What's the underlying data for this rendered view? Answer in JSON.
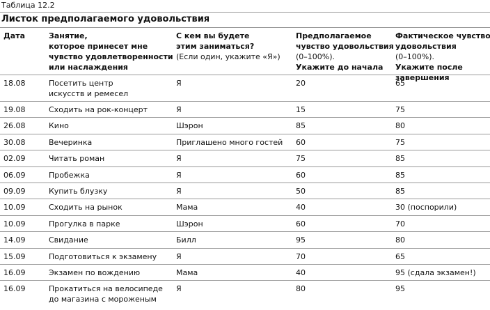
{
  "caption": "Таблица 12.2",
  "title": "Листок предполагаемого удовольствия",
  "table": {
    "header": [
      [
        {
          "text": "Дата",
          "bold": true
        }
      ],
      [
        {
          "text": "Занятие,",
          "bold": true
        },
        {
          "text": "которое принесет мне",
          "bold": true
        },
        {
          "text": "чувство удовлетворенности",
          "bold": true
        },
        {
          "text": "или наслаждения",
          "bold": true
        }
      ],
      [
        {
          "text": "С кем вы будете",
          "bold": true
        },
        {
          "text": "этим заниматься?",
          "bold": true
        },
        {
          "text": "(Если один, укажите «Я»)",
          "bold": false
        }
      ],
      [
        {
          "text": "Предполагаемое",
          "bold": true
        },
        {
          "text": "чувство удовольствия",
          "bold": true
        },
        {
          "text": "(0–100%).",
          "bold": false
        },
        {
          "text": "Укажите до начала",
          "bold": true
        }
      ],
      [
        {
          "text": "Фактическое чувство",
          "bold": true
        },
        {
          "text": "удовольствия",
          "bold": true
        },
        {
          "text": "(0–100%).",
          "bold": false
        },
        {
          "text": "Укажите после",
          "bold": true
        },
        {
          "text": "завершения",
          "bold": true
        }
      ]
    ],
    "rows": [
      [
        [
          "18.08"
        ],
        [
          "Посетить центр",
          "искусств и ремесел"
        ],
        [
          "Я"
        ],
        [
          20
        ],
        [
          65
        ]
      ],
      [
        [
          "19.08"
        ],
        [
          "Сходить на рок-концерт"
        ],
        [
          "Я"
        ],
        [
          15
        ],
        [
          75
        ]
      ],
      [
        [
          "26.08"
        ],
        [
          "Кино"
        ],
        [
          "Шэрон"
        ],
        [
          85
        ],
        [
          80
        ]
      ],
      [
        [
          "30.08"
        ],
        [
          "Вечеринка"
        ],
        [
          "Приглашено много гостей"
        ],
        [
          60
        ],
        [
          75
        ]
      ],
      [
        [
          "02.09"
        ],
        [
          "Читать роман"
        ],
        [
          "Я"
        ],
        [
          75
        ],
        [
          85
        ]
      ],
      [
        [
          "06.09"
        ],
        [
          "Пробежка"
        ],
        [
          "Я"
        ],
        [
          60
        ],
        [
          85
        ]
      ],
      [
        [
          "09.09"
        ],
        [
          "Купить блузку"
        ],
        [
          "Я"
        ],
        [
          50
        ],
        [
          85
        ]
      ],
      [
        [
          "10.09"
        ],
        [
          "Сходить на рынок"
        ],
        [
          "Мама"
        ],
        [
          40
        ],
        [
          "30 (поспорили)"
        ]
      ],
      [
        [
          "10.09"
        ],
        [
          "Прогулка в парке"
        ],
        [
          "Шэрон"
        ],
        [
          60
        ],
        [
          70
        ]
      ],
      [
        [
          "14.09"
        ],
        [
          "Свидание"
        ],
        [
          "Билл"
        ],
        [
          95
        ],
        [
          80
        ]
      ],
      [
        [
          "15.09"
        ],
        [
          "Подготовиться к экзамену"
        ],
        [
          "Я"
        ],
        [
          70
        ],
        [
          65
        ]
      ],
      [
        [
          "16.09"
        ],
        [
          "Экзамен по вождению"
        ],
        [
          "Мама"
        ],
        [
          40
        ],
        [
          "95 (сдала экзамен!)"
        ]
      ],
      [
        [
          "16.09"
        ],
        [
          "Прокатиться на велосипеде",
          "до магазина с мороженым"
        ],
        [
          "Я"
        ],
        [
          80
        ],
        [
          95
        ]
      ]
    ]
  }
}
